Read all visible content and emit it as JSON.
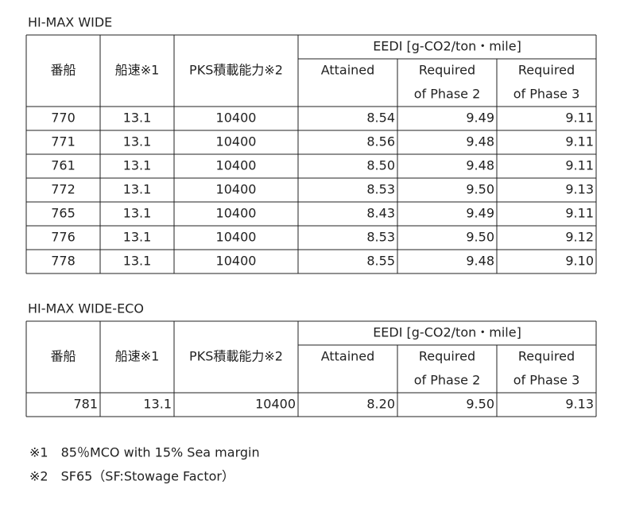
{
  "tables": [
    {
      "title": "HI-MAX WIDE",
      "group_header": "EEDI [g-CO2/ton・mile]",
      "columns": [
        [
          "番船"
        ],
        [
          "船速※1"
        ],
        [
          "PKS積載能力※2"
        ],
        [
          "Attained"
        ],
        [
          "Required",
          "of Phase 2"
        ],
        [
          "Required",
          "of Phase 3"
        ]
      ],
      "rows": [
        [
          "770",
          "13.1",
          "10400",
          "8.54",
          "9.49",
          "9.11"
        ],
        [
          "771",
          "13.1",
          "10400",
          "8.56",
          "9.48",
          "9.11"
        ],
        [
          "761",
          "13.1",
          "10400",
          "8.50",
          "9.48",
          "9.11"
        ],
        [
          "772",
          "13.1",
          "10400",
          "8.53",
          "9.50",
          "9.13"
        ],
        [
          "765",
          "13.1",
          "10400",
          "8.43",
          "9.49",
          "9.11"
        ],
        [
          "776",
          "13.1",
          "10400",
          "8.53",
          "9.50",
          "9.12"
        ],
        [
          "778",
          "13.1",
          "10400",
          "8.55",
          "9.48",
          "9.10"
        ]
      ]
    },
    {
      "title": "HI-MAX WIDE-ECO",
      "group_header": "EEDI [g-CO2/ton・mile]",
      "columns": [
        [
          "番船"
        ],
        [
          "船速※1"
        ],
        [
          "PKS積載能力※2"
        ],
        [
          "Attained"
        ],
        [
          "Required",
          "of Phase 2"
        ],
        [
          "Required",
          "of Phase 3"
        ]
      ],
      "rows": [
        [
          "781",
          "13.1",
          "10400",
          "8.20",
          "9.50",
          "9.13"
        ]
      ]
    }
  ],
  "notes": [
    "※1　85％MCO with 15% Sea margin",
    "※2　SF65（SF:Stowage Factor）"
  ]
}
